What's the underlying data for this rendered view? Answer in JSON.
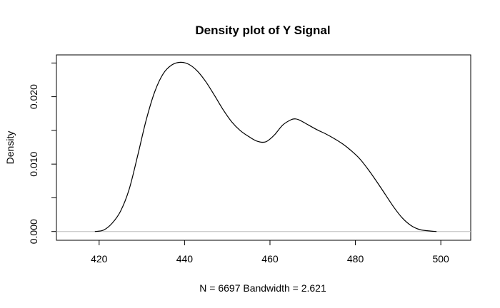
{
  "chart_data": {
    "type": "line",
    "title": "Density plot of Y Signal",
    "xlabel": "N = 6697   Bandwidth = 2.621",
    "ylabel": "Density",
    "xlim": [
      410,
      507
    ],
    "ylim": [
      -0.0013,
      0.0262
    ],
    "x_ticks": [
      420,
      440,
      460,
      480,
      500
    ],
    "x_tick_labels": [
      "420",
      "440",
      "460",
      "480",
      "500"
    ],
    "y_ticks": [
      0.0,
      0.005,
      0.01,
      0.015,
      0.02,
      0.025
    ],
    "y_tick_labels": [
      "0.000",
      "",
      "0.010",
      "",
      "0.020",
      ""
    ],
    "grid": false,
    "baseline_y": 0,
    "series": [
      {
        "x": [
          419,
          421,
          423,
          425,
          427,
          429,
          431,
          433,
          435,
          437,
          439,
          441,
          443,
          445,
          447,
          449,
          451,
          453,
          455,
          457,
          459,
          461,
          463,
          465,
          466,
          467,
          469,
          471,
          473,
          475,
          477,
          479,
          481,
          483,
          485,
          487,
          489,
          491,
          493,
          495,
          497,
          499
        ],
        "values": [
          0.0,
          0.0002,
          0.0012,
          0.003,
          0.0062,
          0.0112,
          0.0165,
          0.0207,
          0.0234,
          0.0247,
          0.0251,
          0.0248,
          0.0238,
          0.0222,
          0.0202,
          0.0181,
          0.0163,
          0.015,
          0.0141,
          0.0134,
          0.0133,
          0.0143,
          0.0158,
          0.0166,
          0.0167,
          0.0165,
          0.0158,
          0.0151,
          0.0145,
          0.0138,
          0.013,
          0.012,
          0.0108,
          0.0092,
          0.0074,
          0.0055,
          0.0036,
          0.002,
          0.0009,
          0.0003,
          0.0001,
          0.0
        ]
      }
    ]
  }
}
